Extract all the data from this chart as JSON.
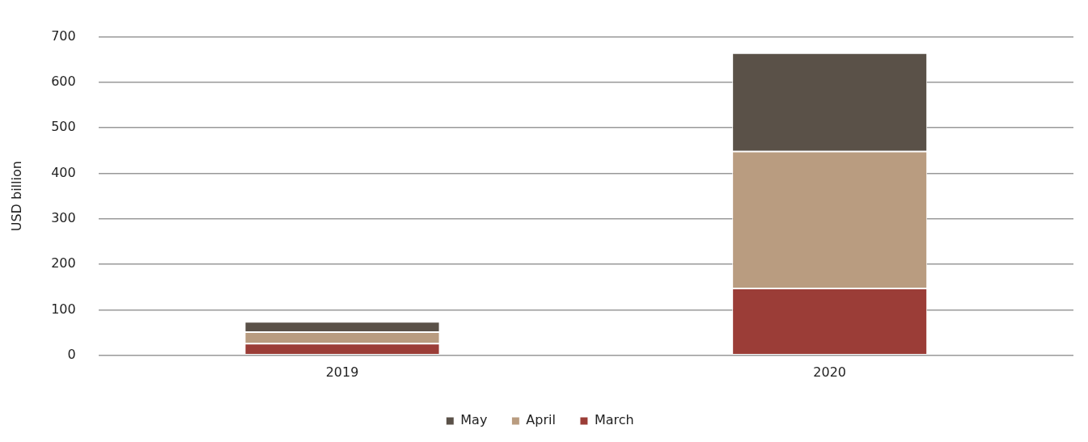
{
  "chart_data": {
    "type": "bar",
    "ylabel": "USD billion",
    "categories": [
      "2019",
      "2020"
    ],
    "stacked": true,
    "series": [
      {
        "name": "March",
        "color": "#9b3d37",
        "values": [
          26,
          147
        ]
      },
      {
        "name": "April",
        "color": "#b99c80",
        "values": [
          25,
          301
        ]
      },
      {
        "name": "May",
        "color": "#5a5148",
        "values": [
          23,
          216
        ]
      }
    ],
    "ylim": [
      0,
      700
    ],
    "yticks": [
      0,
      100,
      200,
      300,
      400,
      500,
      600,
      700
    ],
    "grid": "y",
    "legend": "bottom"
  }
}
